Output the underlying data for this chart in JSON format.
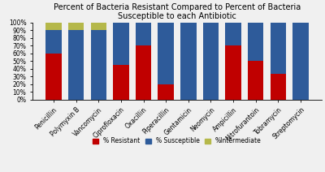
{
  "categories": [
    "Penicillin",
    "Polymyxin B",
    "Vancomycin",
    "Ciprofloxacin",
    "Oxacillin",
    "Piperacillin",
    "Gentamicin",
    "Neomycin",
    "Ampicillin",
    "Nitrofurantoin",
    "Tobramycin",
    "Streptomycin"
  ],
  "resistant": [
    60,
    0,
    0,
    45,
    70,
    20,
    0,
    0,
    70,
    50,
    33,
    0
  ],
  "susceptible": [
    30,
    90,
    90,
    55,
    30,
    80,
    100,
    100,
    30,
    50,
    67,
    100
  ],
  "intermediate": [
    10,
    10,
    10,
    0,
    0,
    0,
    0,
    0,
    0,
    0,
    0,
    0
  ],
  "color_resistant": "#c00000",
  "color_susceptible": "#2e5b9a",
  "color_intermediate": "#b5b84a",
  "title_line1": "Percent of Bacteria Resistant Compared to Percent of Bacteria",
  "title_line2": "Susceptible to each Antibiotic",
  "legend_resistant": "% Resistant",
  "legend_susceptible": "% Susceptible",
  "legend_intermediate": "%Intermediate",
  "ylim": [
    0,
    100
  ],
  "ytick_labels": [
    "0%",
    "10%",
    "20%",
    "30%",
    "40%",
    "50%",
    "60%",
    "70%",
    "80%",
    "90%",
    "100%"
  ],
  "ytick_values": [
    0,
    10,
    20,
    30,
    40,
    50,
    60,
    70,
    80,
    90,
    100
  ],
  "title_fontsize": 7.0,
  "tick_fontsize": 5.5,
  "legend_fontsize": 5.5,
  "bar_width": 0.7,
  "background_color": "#f0f0f0"
}
